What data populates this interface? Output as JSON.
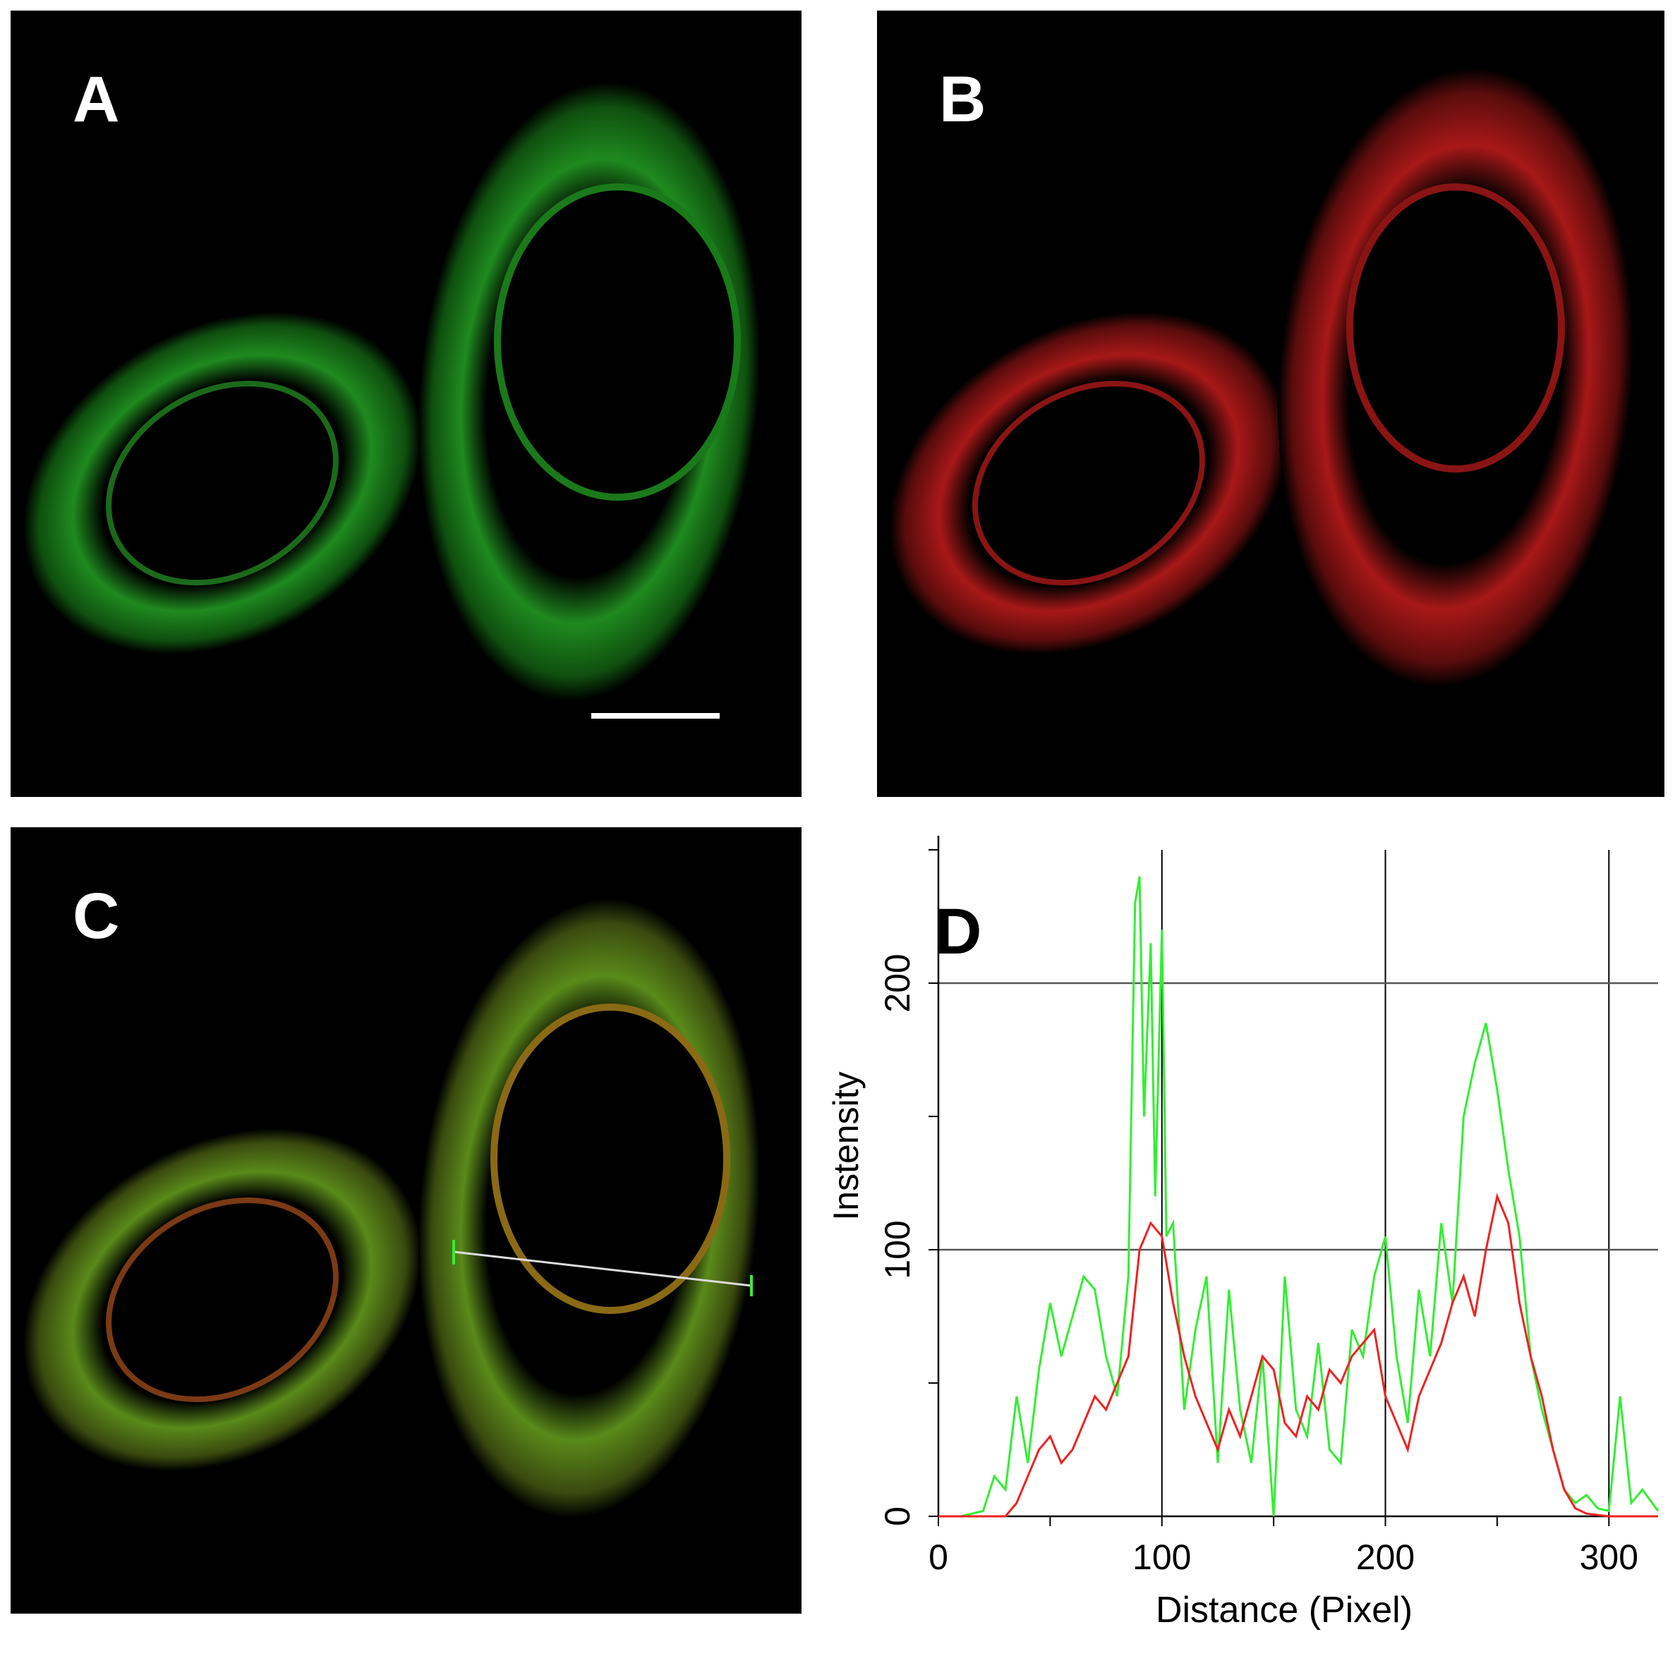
{
  "panels": {
    "a": {
      "letter": "A"
    },
    "b": {
      "letter": "B"
    },
    "c": {
      "letter": "C"
    },
    "d": {
      "letter": "D"
    }
  },
  "colors": {
    "green": "#33ee33",
    "red": "#ee2222",
    "background": "#000000"
  },
  "chart_data": {
    "type": "line",
    "xlabel": "Distance (Pixel)",
    "ylabel": "Instensity",
    "xlim": [
      0,
      322
    ],
    "ylim": [
      0,
      250
    ],
    "x_ticks": [
      "0",
      "100",
      "200",
      "300"
    ],
    "y_ticks": [
      "0",
      "100",
      "200"
    ],
    "grid": true,
    "series": [
      {
        "color": "#33ee33",
        "x": [
          0,
          10,
          20,
          25,
          30,
          35,
          40,
          45,
          50,
          55,
          60,
          65,
          70,
          75,
          80,
          85,
          88,
          90,
          92,
          95,
          97,
          100,
          102,
          105,
          110,
          115,
          120,
          125,
          130,
          135,
          140,
          145,
          150,
          155,
          160,
          165,
          170,
          175,
          180,
          185,
          190,
          195,
          200,
          205,
          210,
          215,
          220,
          225,
          230,
          235,
          240,
          245,
          250,
          255,
          260,
          265,
          270,
          275,
          280,
          285,
          290,
          295,
          300,
          305,
          310,
          315,
          322
        ],
        "y": [
          0,
          0,
          2,
          15,
          10,
          45,
          20,
          55,
          80,
          60,
          75,
          90,
          85,
          60,
          45,
          90,
          230,
          240,
          150,
          215,
          120,
          220,
          105,
          110,
          40,
          70,
          90,
          20,
          85,
          40,
          20,
          60,
          0,
          90,
          40,
          30,
          65,
          25,
          20,
          70,
          60,
          90,
          105,
          60,
          35,
          85,
          60,
          110,
          80,
          150,
          170,
          185,
          160,
          130,
          105,
          60,
          40,
          25,
          10,
          5,
          8,
          3,
          2,
          45,
          5,
          10,
          2
        ]
      },
      {
        "color": "#ee2222",
        "x": [
          0,
          20,
          30,
          35,
          40,
          45,
          50,
          55,
          60,
          65,
          70,
          75,
          80,
          85,
          90,
          95,
          100,
          105,
          110,
          115,
          120,
          125,
          130,
          135,
          140,
          145,
          150,
          155,
          160,
          165,
          170,
          175,
          180,
          185,
          190,
          195,
          200,
          205,
          210,
          215,
          220,
          225,
          230,
          235,
          240,
          245,
          250,
          255,
          260,
          265,
          270,
          275,
          280,
          285,
          290,
          300,
          310,
          322
        ],
        "y": [
          0,
          0,
          0,
          5,
          15,
          25,
          30,
          20,
          25,
          35,
          45,
          40,
          50,
          60,
          100,
          110,
          105,
          80,
          60,
          45,
          35,
          25,
          40,
          30,
          45,
          60,
          55,
          35,
          30,
          45,
          40,
          55,
          50,
          60,
          65,
          70,
          45,
          35,
          25,
          45,
          55,
          65,
          80,
          90,
          75,
          100,
          120,
          110,
          80,
          60,
          45,
          25,
          10,
          3,
          1,
          0,
          0,
          0
        ]
      }
    ]
  }
}
